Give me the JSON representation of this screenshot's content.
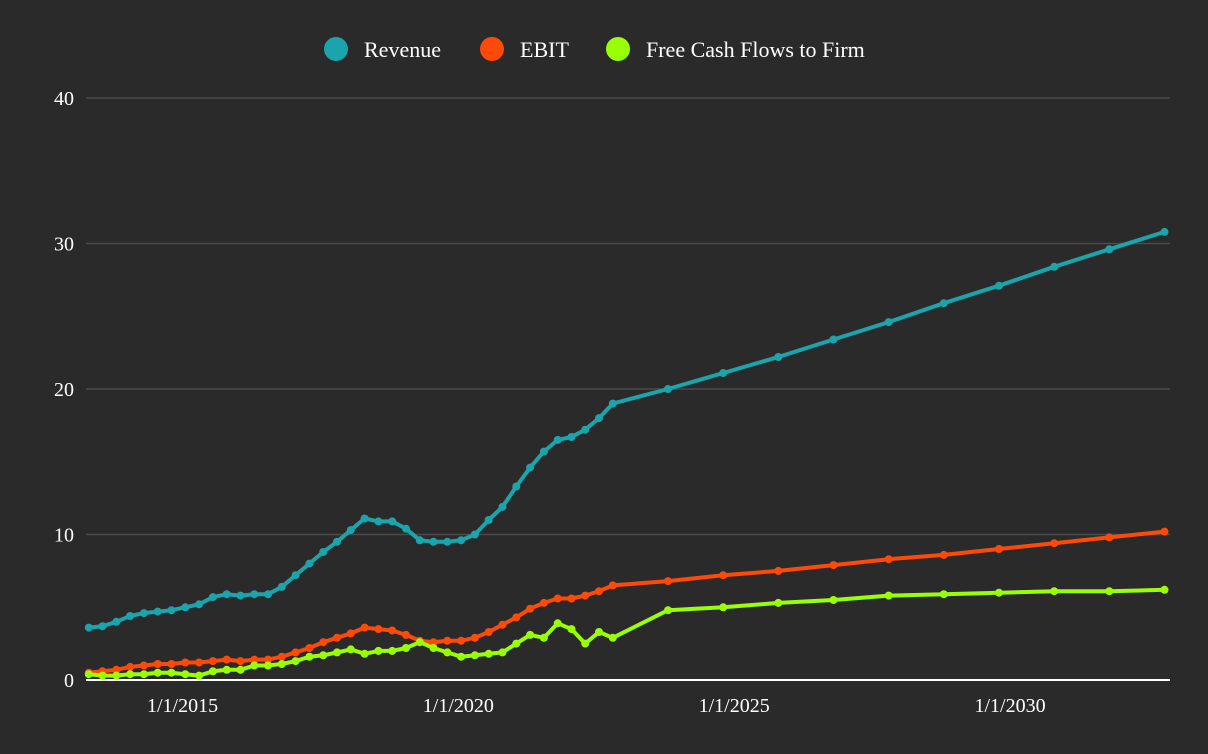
{
  "chart_data": {
    "type": "line",
    "title": "",
    "xlabel": "",
    "ylabel": "",
    "ylim": [
      0,
      40
    ],
    "yticks": [
      "0",
      "10",
      "20",
      "30",
      "40"
    ],
    "xticks": [
      "1/1/2015",
      "1/1/2020",
      "1/1/2025",
      "1/1/2030"
    ],
    "xtick_values": [
      2015.0,
      2020.0,
      2025.0,
      2030.0
    ],
    "xlim": [
      2013.25,
      2032.9
    ],
    "legend_position": "top-center",
    "grid": true,
    "colors": {
      "background": "#2a2a2a",
      "grid": "#4a4a4a",
      "axis": "#ffffff",
      "text": "#ffffff"
    },
    "series": [
      {
        "name": "Revenue",
        "color": "#1aa5ad",
        "x": [
          2013.3,
          2013.55,
          2013.8,
          2014.05,
          2014.3,
          2014.55,
          2014.8,
          2015.05,
          2015.3,
          2015.55,
          2015.8,
          2016.05,
          2016.3,
          2016.55,
          2016.8,
          2017.05,
          2017.3,
          2017.55,
          2017.8,
          2018.05,
          2018.3,
          2018.55,
          2018.8,
          2019.05,
          2019.3,
          2019.55,
          2019.8,
          2020.05,
          2020.3,
          2020.55,
          2020.8,
          2021.05,
          2021.3,
          2021.55,
          2021.8,
          2022.05,
          2022.3,
          2022.55,
          2022.8,
          2023.8,
          2024.8,
          2025.8,
          2026.8,
          2027.8,
          2028.8,
          2029.8,
          2030.8,
          2031.8,
          2032.8
        ],
        "values": [
          3.6,
          3.7,
          4.0,
          4.4,
          4.6,
          4.7,
          4.8,
          5.0,
          5.2,
          5.7,
          5.9,
          5.8,
          5.9,
          5.9,
          6.4,
          7.2,
          8.0,
          8.8,
          9.5,
          10.3,
          11.1,
          10.9,
          10.9,
          10.4,
          9.6,
          9.5,
          9.5,
          9.6,
          10.0,
          11.0,
          11.9,
          13.3,
          14.6,
          15.7,
          16.5,
          16.7,
          17.2,
          18.0,
          19.0,
          20.0,
          21.1,
          22.2,
          23.4,
          24.6,
          25.9,
          27.1,
          28.4,
          29.6,
          30.8
        ]
      },
      {
        "name": "EBIT",
        "color": "#ff4a07",
        "x": [
          2013.3,
          2013.55,
          2013.8,
          2014.05,
          2014.3,
          2014.55,
          2014.8,
          2015.05,
          2015.3,
          2015.55,
          2015.8,
          2016.05,
          2016.3,
          2016.55,
          2016.8,
          2017.05,
          2017.3,
          2017.55,
          2017.8,
          2018.05,
          2018.3,
          2018.55,
          2018.8,
          2019.05,
          2019.3,
          2019.55,
          2019.8,
          2020.05,
          2020.3,
          2020.55,
          2020.8,
          2021.05,
          2021.3,
          2021.55,
          2021.8,
          2022.05,
          2022.3,
          2022.55,
          2022.8,
          2023.8,
          2024.8,
          2025.8,
          2026.8,
          2027.8,
          2028.8,
          2029.8,
          2030.8,
          2031.8,
          2032.8
        ],
        "values": [
          0.5,
          0.6,
          0.7,
          0.9,
          1.0,
          1.1,
          1.1,
          1.2,
          1.2,
          1.3,
          1.4,
          1.3,
          1.4,
          1.4,
          1.6,
          1.9,
          2.2,
          2.6,
          2.9,
          3.2,
          3.6,
          3.5,
          3.4,
          3.1,
          2.7,
          2.6,
          2.7,
          2.7,
          2.9,
          3.3,
          3.8,
          4.3,
          4.9,
          5.3,
          5.6,
          5.6,
          5.8,
          6.1,
          6.5,
          6.8,
          7.2,
          7.5,
          7.9,
          8.3,
          8.6,
          9.0,
          9.4,
          9.8,
          10.2
        ]
      },
      {
        "name": "Free Cash Flows to Firm",
        "color": "#99ff05",
        "x": [
          2013.3,
          2013.55,
          2013.8,
          2014.05,
          2014.3,
          2014.55,
          2014.8,
          2015.05,
          2015.3,
          2015.55,
          2015.8,
          2016.05,
          2016.3,
          2016.55,
          2016.8,
          2017.05,
          2017.3,
          2017.55,
          2017.8,
          2018.05,
          2018.3,
          2018.55,
          2018.8,
          2019.05,
          2019.3,
          2019.55,
          2019.8,
          2020.05,
          2020.3,
          2020.55,
          2020.8,
          2021.05,
          2021.3,
          2021.55,
          2021.8,
          2022.05,
          2022.3,
          2022.55,
          2022.8,
          2023.8,
          2024.8,
          2025.8,
          2026.8,
          2027.8,
          2028.8,
          2029.8,
          2030.8,
          2031.8,
          2032.8
        ],
        "values": [
          0.4,
          0.3,
          0.3,
          0.4,
          0.4,
          0.5,
          0.5,
          0.4,
          0.3,
          0.6,
          0.7,
          0.7,
          1.0,
          1.0,
          1.1,
          1.3,
          1.6,
          1.7,
          1.9,
          2.1,
          1.8,
          2.0,
          2.0,
          2.2,
          2.6,
          2.2,
          1.9,
          1.6,
          1.7,
          1.8,
          1.9,
          2.5,
          3.1,
          2.9,
          3.9,
          3.5,
          2.5,
          3.3,
          2.9,
          4.8,
          5.0,
          5.3,
          5.5,
          5.8,
          5.9,
          6.0,
          6.1,
          6.1,
          6.2
        ]
      }
    ]
  }
}
